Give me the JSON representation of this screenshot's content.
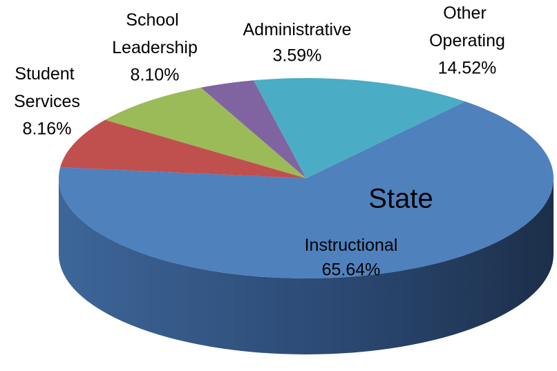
{
  "chart_data": {
    "type": "pie",
    "title": "State",
    "categories": [
      "Instructional",
      "Student Services",
      "School Leadership",
      "Administrative",
      "Other Operating"
    ],
    "values": [
      65.64,
      8.16,
      8.1,
      3.59,
      14.52
    ],
    "value_labels": [
      "65.64%",
      "8.16%",
      "8.10%",
      "3.59%",
      "14.52%"
    ],
    "colors": [
      "#4f81bd",
      "#c0504d",
      "#9bbb59",
      "#8064a2",
      "#4bacc6"
    ]
  }
}
